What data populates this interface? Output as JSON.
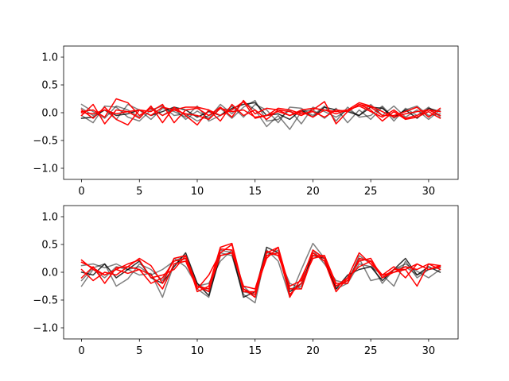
{
  "chart_data": [
    {
      "type": "line",
      "title": "",
      "xlabel": "",
      "ylabel": "",
      "xlim": [
        -1.55,
        32.55
      ],
      "ylim": [
        -1.2,
        1.2
      ],
      "xticks": [
        0,
        5,
        10,
        15,
        20,
        25,
        30
      ],
      "yticks": [
        -1.0,
        -0.5,
        0.0,
        0.5,
        1.0
      ],
      "xtick_labels": [
        "0",
        "5",
        "10",
        "15",
        "20",
        "25",
        "30"
      ],
      "ytick_labels": [
        "−1.0",
        "−0.5",
        "0.0",
        "0.5",
        "1.0"
      ],
      "grid": false,
      "x": [
        0,
        1,
        2,
        3,
        4,
        5,
        6,
        7,
        8,
        9,
        10,
        11,
        12,
        13,
        14,
        15,
        16,
        17,
        18,
        19,
        20,
        21,
        22,
        23,
        24,
        25,
        26,
        27,
        28,
        29,
        30,
        31
      ],
      "series": [
        {
          "color": "#000000",
          "opacity": 0.5,
          "values": [
            0.15,
            0.02,
            -0.1,
            0.12,
            0.05,
            -0.08,
            0.1,
            -0.05,
            0.08,
            -0.12,
            0.03,
            -0.1,
            0.15,
            -0.02,
            0.2,
            0.05,
            -0.25,
            -0.05,
            -0.3,
            0.02,
            0.05,
            -0.1,
            0.08,
            -0.18,
            0.05,
            -0.12,
            0.1,
            -0.15,
            0.08,
            -0.05,
            0.1,
            -0.08
          ]
        },
        {
          "color": "#000000",
          "opacity": 0.5,
          "values": [
            -0.05,
            -0.18,
            0.12,
            0.1,
            -0.08,
            -0.15,
            0.05,
            0.12,
            -0.05,
            -0.02,
            -0.15,
            -0.05,
            0.08,
            -0.1,
            0.1,
            0.22,
            -0.15,
            -0.12,
            0.05,
            -0.2,
            0.1,
            0.02,
            -0.08,
            0.05,
            -0.05,
            0.15,
            -0.05,
            0.12,
            -0.08,
            0.05,
            -0.12,
            0.05
          ]
        },
        {
          "color": "#000000",
          "opacity": 0.5,
          "values": [
            0.08,
            -0.05,
            0.05,
            -0.12,
            0.15,
            0.05,
            -0.12,
            0.08,
            0.02,
            -0.08,
            0.12,
            -0.15,
            -0.05,
            0.12,
            -0.08,
            0.15,
            0.05,
            -0.18,
            0.1,
            0.08,
            -0.05,
            0.12,
            -0.15,
            0.1,
            -0.08,
            -0.05,
            0.12,
            -0.1,
            0.05,
            0.12,
            -0.05,
            -0.02
          ]
        },
        {
          "color": "#000000",
          "opacity": 0.8,
          "values": [
            -0.1,
            -0.08,
            0.05,
            -0.05,
            -0.02,
            0.05,
            -0.05,
            0.02,
            0.1,
            0.05,
            -0.08,
            0.02,
            -0.05,
            0.08,
            0.15,
            0.18,
            -0.05,
            -0.02,
            -0.12,
            0.05,
            -0.08,
            0.1,
            0.05,
            0.02,
            -0.05,
            0.1,
            0.08,
            -0.08,
            0.05,
            -0.1,
            0.08,
            0.02
          ]
        },
        {
          "color": "#ff0000",
          "opacity": 1.0,
          "values": [
            0.05,
            -0.1,
            0.1,
            -0.12,
            -0.22,
            0.05,
            0.02,
            0.15,
            -0.18,
            0.05,
            0.08,
            -0.05,
            0.1,
            -0.08,
            0.22,
            -0.02,
            0.08,
            0.05,
            0.02,
            -0.05,
            0.05,
            0.2,
            -0.2,
            0.02,
            0.15,
            0.05,
            -0.15,
            0.02,
            -0.12,
            -0.08,
            0.02,
            -0.1
          ]
        },
        {
          "color": "#ff0000",
          "opacity": 1.0,
          "values": [
            -0.05,
            0.15,
            -0.2,
            0.05,
            0.02,
            -0.1,
            0.12,
            -0.18,
            0.1,
            -0.05,
            -0.22,
            0.05,
            -0.15,
            0.15,
            -0.05,
            0.05,
            -0.12,
            0.05,
            -0.05,
            0.02,
            -0.08,
            0.05,
            0.02,
            0.05,
            0.12,
            0.02,
            -0.08,
            0.05,
            -0.1,
            -0.05,
            0.05,
            0.02
          ]
        },
        {
          "color": "#ff0000",
          "opacity": 1.0,
          "values": [
            0.02,
            0.05,
            -0.08,
            0.25,
            0.18,
            -0.05,
            0.08,
            -0.05,
            0.05,
            0.1,
            0.1,
            0.05,
            -0.05,
            0.05,
            0.2,
            -0.1,
            -0.05,
            0.08,
            0.05,
            -0.02,
            0.02,
            -0.08,
            0.05,
            0.02,
            0.15,
            0.1,
            -0.05,
            -0.05,
            0.02,
            0.1,
            -0.08,
            0.08
          ]
        },
        {
          "color": "#ff0000",
          "opacity": 1.0,
          "values": [
            0.0,
            -0.02,
            0.05,
            -0.02,
            0.02,
            0.05,
            -0.05,
            0.1,
            0.05,
            -0.02,
            -0.05,
            -0.12,
            0.08,
            0.02,
            0.05,
            -0.08,
            -0.05,
            0.02,
            -0.05,
            0.05,
            0.08,
            0.05,
            -0.02,
            0.05,
            0.18,
            0.12,
            0.02,
            -0.08,
            -0.02,
            0.02,
            0.05,
            -0.05
          ]
        }
      ]
    },
    {
      "type": "line",
      "title": "",
      "xlabel": "",
      "ylabel": "",
      "xlim": [
        -1.55,
        32.55
      ],
      "ylim": [
        -1.2,
        1.2
      ],
      "xticks": [
        0,
        5,
        10,
        15,
        20,
        25,
        30
      ],
      "yticks": [
        -1.0,
        -0.5,
        0.0,
        0.5,
        1.0
      ],
      "xtick_labels": [
        "0",
        "5",
        "10",
        "15",
        "20",
        "25",
        "30"
      ],
      "ytick_labels": [
        "−1.0",
        "−0.5",
        "0.0",
        "0.5",
        "1.0"
      ],
      "grid": false,
      "x": [
        0,
        1,
        2,
        3,
        4,
        5,
        6,
        7,
        8,
        9,
        10,
        11,
        12,
        13,
        14,
        15,
        16,
        17,
        18,
        19,
        20,
        21,
        22,
        23,
        24,
        25,
        26,
        27,
        28,
        29,
        30,
        31
      ],
      "series": [
        {
          "color": "#000000",
          "opacity": 0.5,
          "values": [
            -0.25,
            0.05,
            -0.1,
            0.1,
            0.05,
            -0.05,
            -0.02,
            -0.45,
            0.15,
            0.25,
            -0.3,
            -0.45,
            0.35,
            0.3,
            -0.4,
            -0.55,
            0.4,
            0.2,
            -0.45,
            0.05,
            0.52,
            0.25,
            -0.3,
            -0.2,
            0.15,
            0.1,
            -0.05,
            -0.25,
            0.2,
            -0.1,
            0.05,
            0.08
          ]
        },
        {
          "color": "#000000",
          "opacity": 0.5,
          "values": [
            0.12,
            0.15,
            0.08,
            0.15,
            0.05,
            0.1,
            -0.05,
            0.05,
            0.2,
            0.3,
            -0.2,
            -0.35,
            0.4,
            0.35,
            -0.35,
            -0.4,
            0.3,
            0.4,
            -0.3,
            -0.25,
            0.35,
            0.2,
            -0.25,
            -0.15,
            0.25,
            -0.15,
            -0.1,
            0.05,
            0.1,
            -0.05,
            0.05,
            0.1
          ]
        },
        {
          "color": "#000000",
          "opacity": 0.5,
          "values": [
            -0.15,
            0.08,
            0.15,
            -0.25,
            -0.12,
            0.15,
            0.05,
            -0.15,
            0.25,
            0.1,
            -0.25,
            -0.2,
            0.2,
            0.4,
            -0.25,
            -0.45,
            0.35,
            0.3,
            -0.2,
            -0.3,
            0.4,
            0.15,
            -0.15,
            -0.2,
            0.3,
            0.15,
            -0.2,
            0.05,
            0.15,
            0.02,
            -0.1,
            0.05
          ]
        },
        {
          "color": "#000000",
          "opacity": 0.8,
          "values": [
            0.0,
            -0.05,
            0.15,
            -0.1,
            0.05,
            0.2,
            -0.1,
            -0.2,
            0.1,
            0.35,
            -0.2,
            -0.42,
            0.3,
            0.35,
            -0.45,
            -0.35,
            0.45,
            0.35,
            -0.35,
            -0.2,
            0.3,
            0.25,
            -0.3,
            -0.05,
            0.05,
            0.1,
            -0.15,
            0.05,
            0.25,
            -0.05,
            0.1,
            0.0
          ]
        },
        {
          "color": "#ff0000",
          "opacity": 1.0,
          "values": [
            0.22,
            0.05,
            -0.05,
            0.05,
            -0.02,
            0.05,
            -0.05,
            -0.3,
            0.15,
            0.2,
            -0.3,
            -0.05,
            0.35,
            0.5,
            -0.35,
            -0.35,
            0.25,
            0.45,
            -0.45,
            -0.1,
            0.35,
            0.2,
            -0.35,
            -0.1,
            0.35,
            0.15,
            -0.05,
            0.1,
            -0.1,
            0.15,
            0.05,
            0.1
          ]
        },
        {
          "color": "#ff0000",
          "opacity": 1.0,
          "values": [
            -0.1,
            0.1,
            -0.2,
            0.08,
            0.1,
            0.25,
            0.12,
            -0.2,
            0.25,
            0.3,
            -0.35,
            -0.25,
            0.45,
            0.52,
            -0.3,
            -0.4,
            0.3,
            0.35,
            -0.4,
            -0.2,
            0.25,
            0.3,
            -0.25,
            -0.15,
            0.2,
            0.25,
            -0.1,
            0.05,
            0.05,
            -0.25,
            0.15,
            0.05
          ]
        },
        {
          "color": "#ff0000",
          "opacity": 1.0,
          "values": [
            0.05,
            -0.15,
            0.0,
            -0.05,
            0.1,
            0.05,
            -0.2,
            -0.1,
            0.2,
            0.25,
            -0.25,
            -0.3,
            0.3,
            0.35,
            -0.25,
            -0.3,
            0.35,
            0.45,
            -0.3,
            -0.3,
            0.3,
            0.3,
            -0.2,
            -0.2,
            0.25,
            0.2,
            -0.05,
            0.0,
            0.05,
            0.15,
            0.05,
            0.12
          ]
        },
        {
          "color": "#ff0000",
          "opacity": 1.0,
          "values": [
            0.18,
            0.08,
            -0.05,
            0.05,
            0.15,
            0.22,
            -0.1,
            -0.05,
            0.05,
            0.3,
            -0.25,
            -0.35,
            0.42,
            0.4,
            -0.3,
            -0.45,
            0.38,
            0.3,
            -0.25,
            -0.15,
            0.4,
            0.25,
            -0.25,
            -0.1,
            0.1,
            0.2,
            -0.1,
            0.0,
            0.1,
            0.05,
            0.15,
            0.12
          ]
        }
      ]
    }
  ]
}
